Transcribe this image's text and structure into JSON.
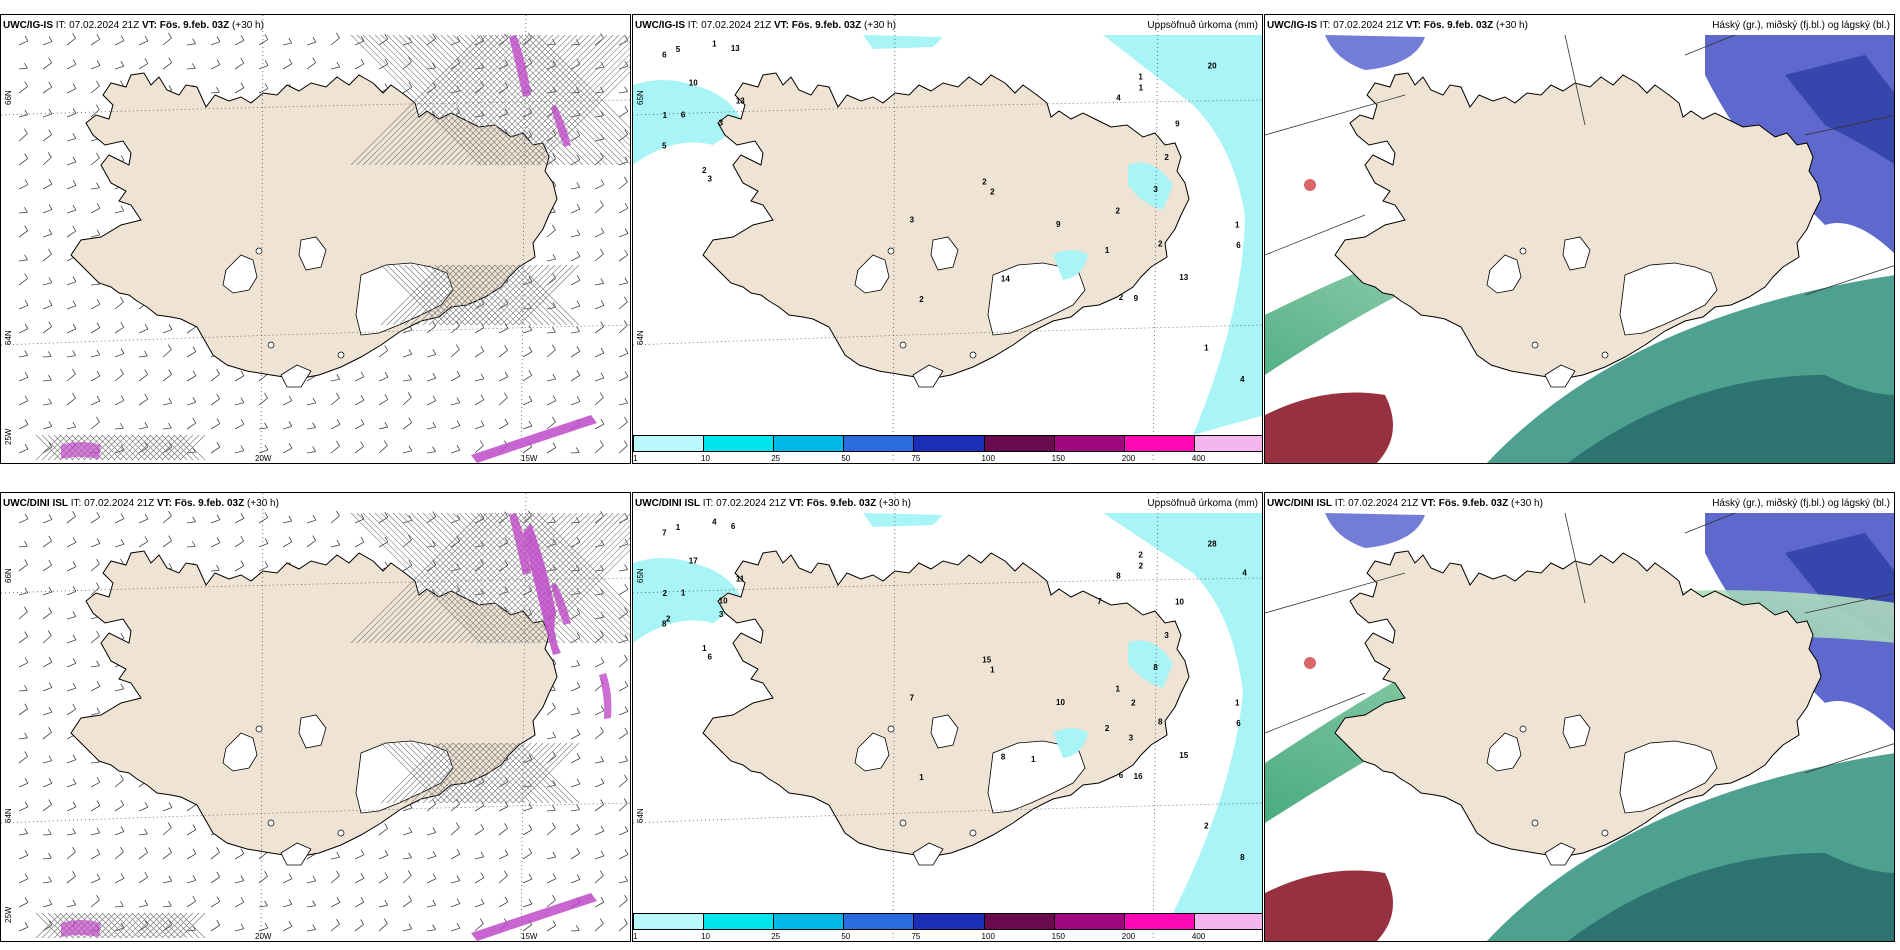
{
  "colors": {
    "land": "#efe3d3",
    "precip": "#a8f4f6",
    "coast": "#000",
    "hatch": "#666",
    "magenta": "#c04ac8"
  },
  "precip_legend": {
    "colors": [
      "#b8f7fa",
      "#00e6ee",
      "#00b8e6",
      "#2a6be0",
      "#1b2fb8",
      "#6a0a4f",
      "#a0087f",
      "#ff0ab4",
      "#f5b6f0"
    ],
    "ticks": [
      "1",
      "10",
      "25",
      "50",
      "75",
      "100",
      "150",
      "200",
      "400"
    ]
  },
  "panels": [
    {
      "id": "top-wind",
      "title_model": "UWC/IG-IS",
      "title_it": "IT: 07.02.2024 21Z",
      "title_vt_label": "VT:",
      "title_vt": "Fös. 9.feb. 03Z",
      "title_lead": "(+30 h)",
      "right_title": "",
      "lat_labels": [
        "66N",
        "64N",
        "25W"
      ],
      "lon_labels": [
        "20W",
        "15W"
      ]
    },
    {
      "id": "top-precip",
      "title_model": "UWC/IG-IS",
      "title_it": "IT: 07.02.2024 21Z",
      "title_vt_label": "VT:",
      "title_vt": "Fös. 9.feb. 03Z",
      "title_lead": "(+30 h)",
      "right_title": "Uppsöfnuð úrkoma (mm)",
      "lat_labels": [
        "65N",
        "64N"
      ],
      "numbers": [
        "3",
        "6",
        "2",
        "5",
        "2",
        "2",
        "5",
        "20",
        "2",
        "3",
        "4",
        "3",
        "6",
        "4",
        "14",
        "13",
        "13",
        "9",
        "10",
        "9",
        "9",
        "13",
        "3",
        "2",
        "1",
        "1",
        "1",
        "1",
        "1",
        "2",
        "2",
        "1",
        "2",
        "6",
        "1"
      ]
    },
    {
      "id": "top-cloud",
      "title_model": "UWC/IG-IS",
      "title_it": "IT: 07.02.2024 21Z",
      "title_vt_label": "VT:",
      "title_vt": "Fös. 9.feb. 03Z",
      "title_lead": "(+30 h)",
      "right_title": "Háský (gr.), miðský (fj.bl.) og lágský (bl.)"
    },
    {
      "id": "bottom-wind",
      "title_model": "UWC/DINI ISL",
      "title_it": "IT: 07.02.2024 21Z",
      "title_vt_label": "VT:",
      "title_vt": "Fös. 9.feb. 03Z",
      "title_lead": "(+30 h)",
      "right_title": "",
      "lat_labels": [
        "66N",
        "64N",
        "25W"
      ],
      "lon_labels": [
        "20W",
        "15W"
      ]
    },
    {
      "id": "bottom-precip",
      "title_model": "UWC/DINI ISL",
      "title_it": "IT: 07.02.2024 21Z",
      "title_vt_label": "VT:",
      "title_vt": "Fös. 9.feb. 03Z",
      "title_lead": "(+30 h)",
      "right_title": "Uppsöfnuð úrkoma (mm)",
      "lat_labels": [
        "65N",
        "64N"
      ],
      "numbers": [
        "10",
        "6",
        "1",
        "1",
        "3",
        "6",
        "8",
        "28",
        "15",
        "6",
        "8",
        "7",
        "7",
        "8",
        "8",
        "11",
        "15",
        "10",
        "17",
        "16",
        "10",
        "6",
        "8",
        "8",
        "4",
        "2",
        "2",
        "2",
        "2",
        "1",
        "1",
        "2",
        "1",
        "1",
        "1",
        "3",
        "3",
        "2",
        "1",
        "2",
        "4",
        "7"
      ]
    },
    {
      "id": "bottom-cloud",
      "title_model": "UWC/DINI ISL",
      "title_it": "IT: 07.02.2024 21Z",
      "title_vt_label": "VT:",
      "title_vt": "Fös. 9.feb. 03Z",
      "title_lead": "(+30 h)",
      "right_title": "Háský (gr.), miðský (fj.bl.) og lágský (bl.)"
    }
  ]
}
